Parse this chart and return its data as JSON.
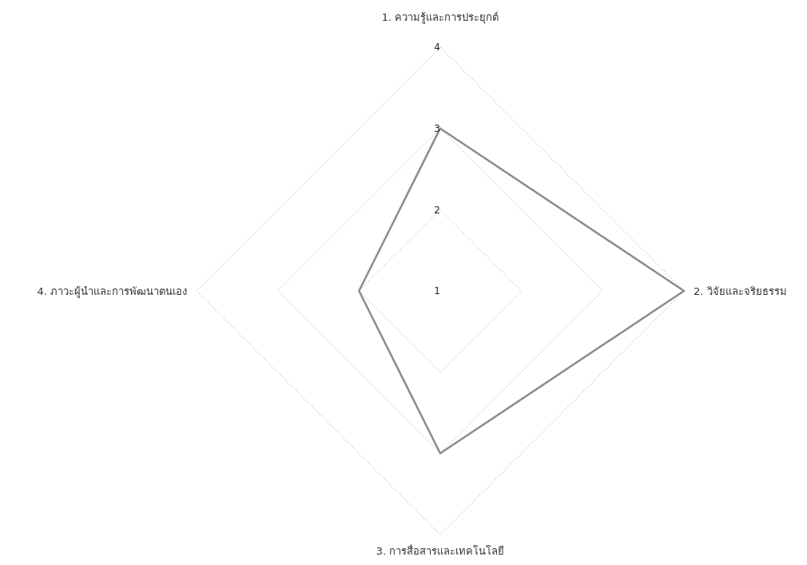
{
  "chart_data": {
    "type": "radar",
    "categories": [
      "1. ความรู้และการประยุกต์",
      "2. วิจัยและจริยธรรม",
      "3. การสื่อสารและเทคโนโลยี",
      "4. ภาวะผู้นำและการพัฒนาตนเอง"
    ],
    "series": [
      {
        "color": "#8c8c8c",
        "values": [
          3,
          4,
          3,
          2
        ]
      }
    ],
    "ylim": [
      1,
      4
    ],
    "yticks": [
      1,
      2,
      3,
      4
    ],
    "grid": true,
    "marker": "none"
  }
}
